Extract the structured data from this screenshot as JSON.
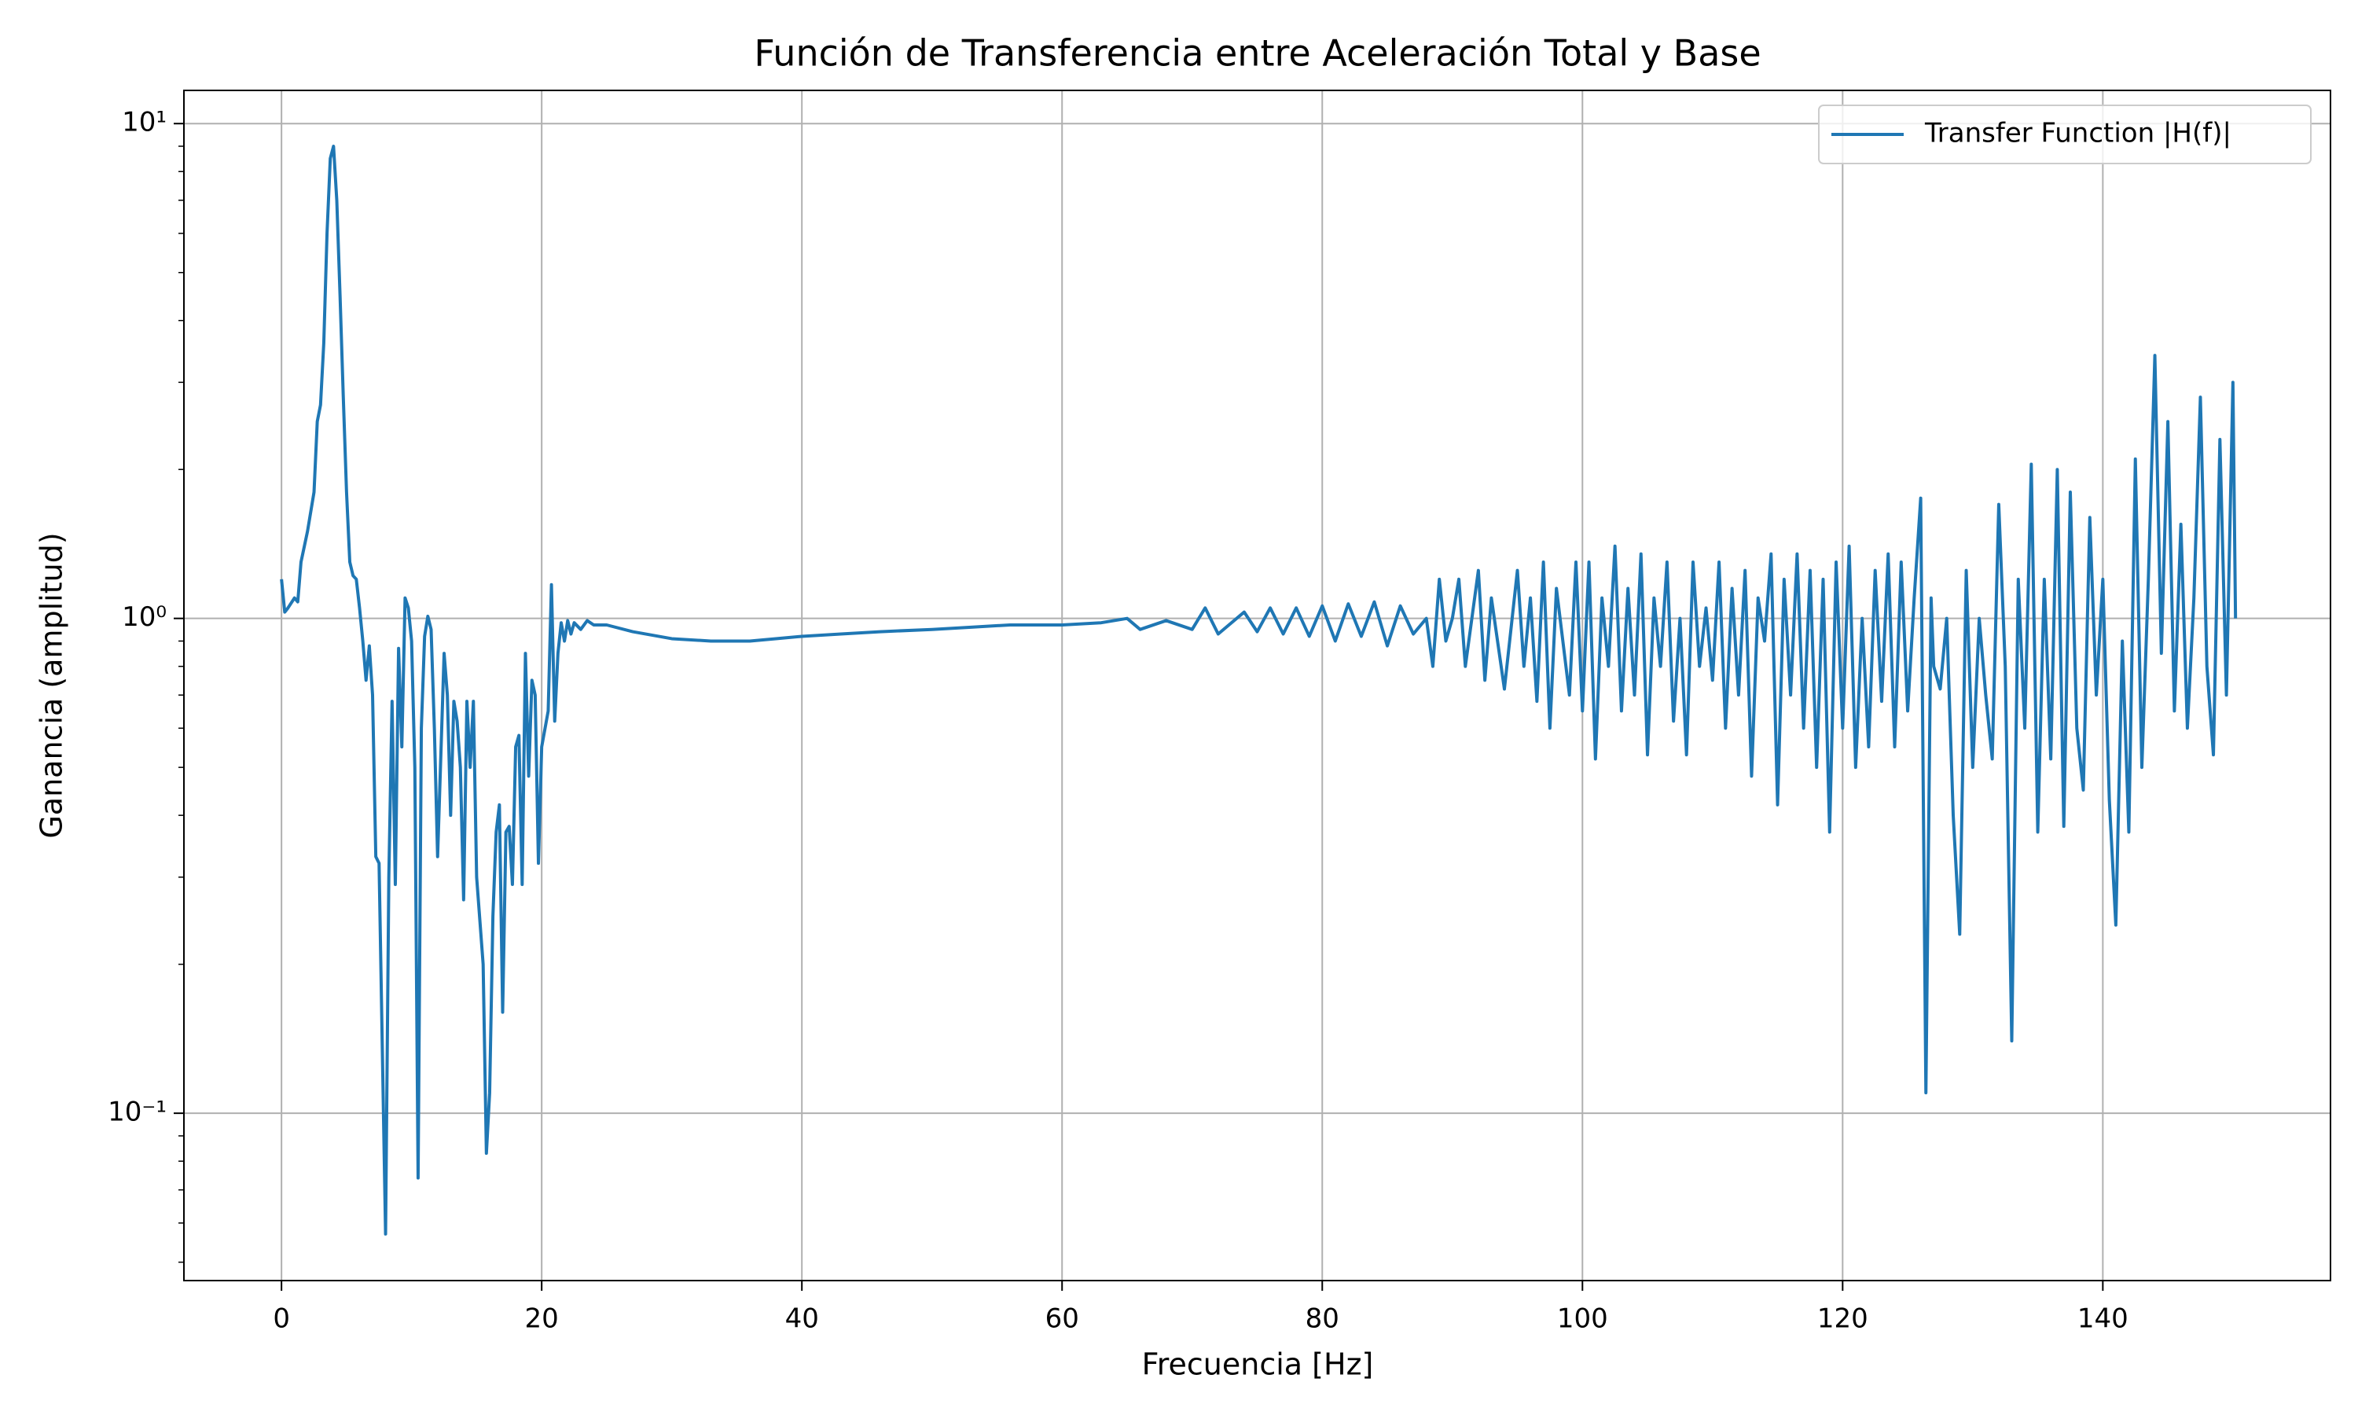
{
  "chart_data": {
    "type": "line",
    "title": "Función de Transferencia entre Aceleración Total y Base",
    "x_label": "Frecuencia [Hz]",
    "y_label": "Ganancia (amplitud)",
    "x": [
      0,
      0.25,
      0.5,
      1,
      1.25,
      1.5,
      2,
      2.5,
      2.75,
      3,
      3.25,
      3.5,
      3.75,
      4,
      4.25,
      4.5,
      4.75,
      5,
      5.25,
      5.5,
      5.75,
      6,
      6.25,
      6.5,
      6.75,
      7,
      7.25,
      7.5,
      8,
      8.25,
      8.5,
      8.75,
      9,
      9.25,
      9.5,
      9.75,
      10,
      10.25,
      10.5,
      10.75,
      11,
      11.25,
      11.5,
      11.75,
      12,
      12.5,
      12.75,
      13,
      13.25,
      13.5,
      13.75,
      14,
      14.25,
      14.5,
      14.75,
      15,
      15.5,
      15.75,
      16,
      16.25,
      16.5,
      16.75,
      17,
      17.25,
      17.5,
      17.75,
      18,
      18.25,
      18.5,
      18.75,
      19,
      19.25,
      19.5,
      19.75,
      20,
      20.5,
      20.75,
      21,
      21.25,
      21.5,
      21.75,
      22,
      22.25,
      22.5,
      23,
      23.5,
      24,
      25,
      27,
      30,
      33,
      36,
      38,
      40,
      43,
      46,
      50,
      53,
      56,
      60,
      63,
      65,
      66,
      68,
      70,
      71,
      72,
      74,
      75,
      76,
      77,
      78,
      79,
      80,
      81,
      82,
      83,
      84,
      85,
      86,
      87,
      88,
      88.5,
      89,
      89.5,
      90,
      90.5,
      91,
      92,
      92.5,
      93,
      94,
      95,
      95.5,
      96,
      96.5,
      97,
      97.5,
      98,
      99,
      99.5,
      100,
      100.5,
      101,
      101.5,
      102,
      102.5,
      103,
      103.5,
      104,
      104.5,
      105,
      105.5,
      106,
      106.5,
      107,
      107.5,
      108,
      108.5,
      109,
      109.5,
      110,
      110.5,
      111,
      111.5,
      112,
      112.5,
      113,
      113.5,
      114,
      114.5,
      115,
      115.5,
      116,
      116.5,
      117,
      117.5,
      118,
      118.5,
      119,
      119.5,
      120,
      120.5,
      121,
      121.5,
      122,
      122.5,
      123,
      123.5,
      124,
      124.5,
      125,
      125.5,
      126,
      126.4,
      126.8,
      127,
      127.5,
      128,
      128.5,
      129,
      129.5,
      130,
      130.5,
      131,
      131.5,
      132,
      132.5,
      133,
      133.5,
      134,
      134.5,
      135,
      135.5,
      136,
      136.5,
      137,
      137.5,
      138,
      138.5,
      139,
      139.5,
      140,
      140.5,
      141,
      141.5,
      142,
      142.5,
      143,
      143.5,
      144,
      144.5,
      145,
      145.5,
      146,
      146.5,
      147,
      147.5,
      148,
      148.5,
      149,
      149.5,
      150,
      150.2
    ],
    "series": [
      {
        "name": "Transfer Function |H(f)|",
        "color": "#1f77b4",
        "values": [
          1.2,
          1.03,
          1.05,
          1.1,
          1.08,
          1.3,
          1.5,
          1.8,
          2.5,
          2.7,
          3.6,
          6.0,
          8.5,
          9.0,
          7.0,
          4.5,
          2.8,
          1.8,
          1.3,
          1.22,
          1.2,
          1.05,
          0.9,
          0.75,
          0.88,
          0.7,
          0.33,
          0.32,
          0.057,
          0.3,
          0.68,
          0.29,
          0.87,
          0.55,
          1.1,
          1.05,
          0.9,
          0.5,
          0.074,
          0.6,
          0.92,
          1.01,
          0.95,
          0.6,
          0.33,
          0.85,
          0.7,
          0.4,
          0.68,
          0.62,
          0.5,
          0.27,
          0.68,
          0.5,
          0.68,
          0.3,
          0.2,
          0.083,
          0.11,
          0.25,
          0.37,
          0.42,
          0.16,
          0.37,
          0.38,
          0.29,
          0.55,
          0.58,
          0.29,
          0.85,
          0.48,
          0.75,
          0.7,
          0.32,
          0.55,
          0.65,
          1.17,
          0.62,
          0.85,
          0.98,
          0.9,
          0.99,
          0.93,
          0.98,
          0.95,
          0.99,
          0.97,
          0.97,
          0.94,
          0.91,
          0.9,
          0.9,
          0.91,
          0.92,
          0.93,
          0.94,
          0.95,
          0.96,
          0.97,
          0.97,
          0.98,
          1.0,
          0.95,
          0.99,
          0.95,
          1.05,
          0.93,
          1.03,
          0.94,
          1.05,
          0.93,
          1.05,
          0.92,
          1.06,
          0.9,
          1.07,
          0.92,
          1.08,
          0.88,
          1.06,
          0.93,
          1.0,
          0.8,
          1.2,
          0.9,
          1.0,
          1.2,
          0.8,
          1.25,
          0.75,
          1.1,
          0.72,
          1.25,
          0.8,
          1.1,
          0.68,
          1.3,
          0.6,
          1.15,
          0.7,
          1.3,
          0.65,
          1.3,
          0.52,
          1.1,
          0.8,
          1.4,
          0.65,
          1.15,
          0.7,
          1.35,
          0.53,
          1.1,
          0.8,
          1.3,
          0.62,
          1.0,
          0.53,
          1.3,
          0.8,
          1.05,
          0.75,
          1.3,
          0.6,
          1.15,
          0.7,
          1.25,
          0.48,
          1.1,
          0.9,
          1.35,
          0.42,
          1.2,
          0.7,
          1.35,
          0.6,
          1.25,
          0.5,
          1.2,
          0.37,
          1.3,
          0.6,
          1.4,
          0.5,
          1.0,
          0.55,
          1.25,
          0.68,
          1.35,
          0.55,
          1.3,
          0.65,
          1.1,
          1.75,
          0.11,
          1.1,
          0.8,
          0.72,
          1.0,
          0.4,
          0.23,
          1.25,
          0.5,
          1.0,
          0.7,
          0.52,
          1.7,
          0.8,
          0.14,
          1.2,
          0.6,
          2.05,
          0.37,
          1.2,
          0.52,
          2.0,
          0.38,
          1.8,
          0.6,
          0.45,
          1.6,
          0.7,
          1.2,
          0.43,
          0.24,
          0.9,
          0.37,
          2.1,
          0.5,
          1.2,
          3.4,
          0.85,
          2.5,
          0.65,
          1.55,
          0.6,
          1.1,
          2.8,
          0.8,
          0.53,
          2.3,
          0.7,
          3.0,
          1.0
        ]
      }
    ],
    "xlim": [
      -7.5,
      157.5
    ],
    "ylim": [
      0.0459,
      11.67
    ],
    "log_y": true,
    "grid": true,
    "legend": "upper right",
    "xticks": [
      0,
      20,
      40,
      60,
      80,
      100,
      120,
      140
    ],
    "yticks": [
      {
        "value": 0.1,
        "label": "10⁻¹"
      },
      {
        "value": 1,
        "label": "10⁰"
      },
      {
        "value": 10,
        "label": "10¹"
      }
    ],
    "yminorticks": [
      0.05,
      0.06,
      0.07,
      0.08,
      0.09,
      0.2,
      0.3,
      0.4,
      0.5,
      0.6,
      0.7,
      0.8,
      0.9,
      2,
      3,
      4,
      5,
      6,
      7,
      8,
      9
    ]
  }
}
